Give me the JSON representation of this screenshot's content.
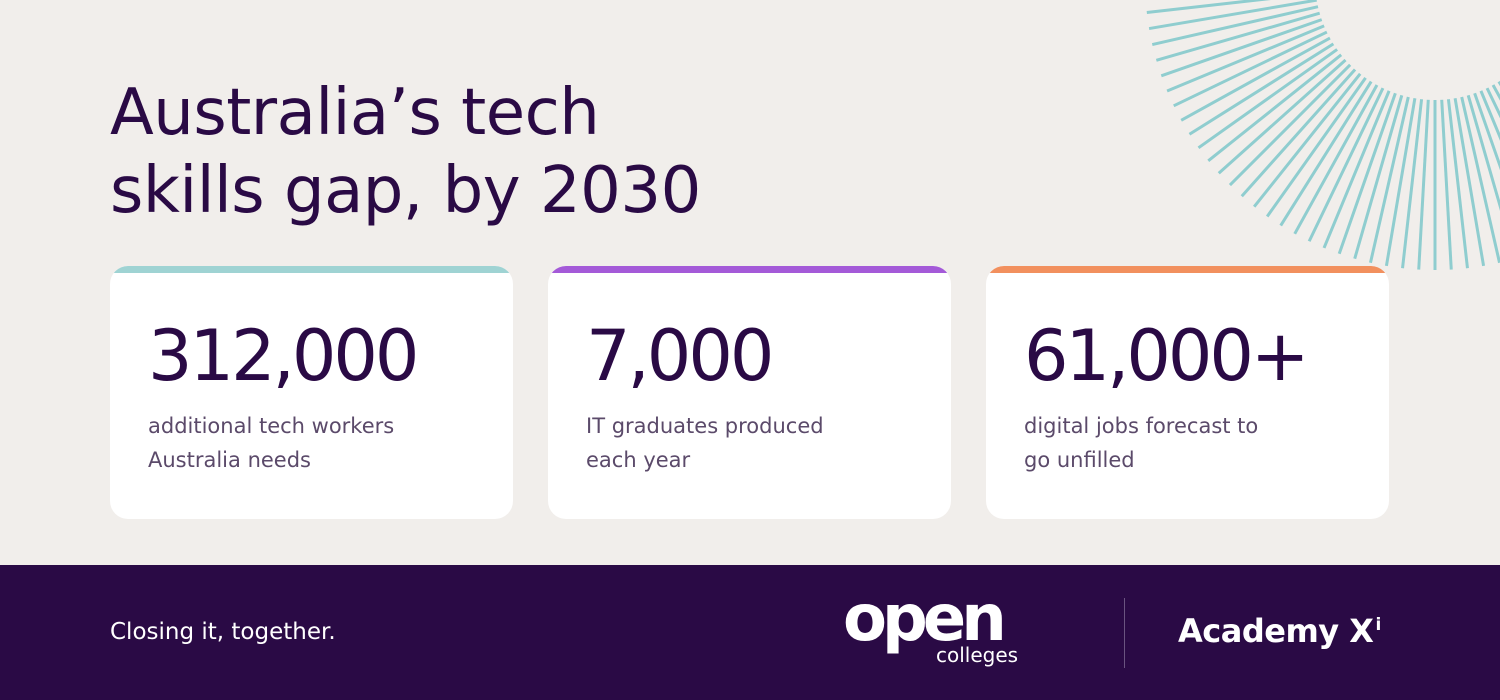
{
  "headline": {
    "line1": "Australia’s tech",
    "line2": "skills gap, by 2030"
  },
  "cards": [
    {
      "stat": "312,000",
      "desc_line1": "additional tech workers",
      "desc_line2": "Australia needs",
      "accent_color": "#9fd3d3"
    },
    {
      "stat": "7,000",
      "desc_line1": "IT graduates produced",
      "desc_line2": "each year",
      "accent_color": "#a45ad8"
    },
    {
      "stat": "61,000+",
      "desc_line1": "digital jobs forecast to",
      "desc_line2": "go unfilled",
      "accent_color": "#f2905e"
    }
  ],
  "footer": {
    "tagline": "Closing it, together.",
    "open_logo_word": "open",
    "open_logo_sub": "colleges",
    "academy_logo": "Academy X",
    "academy_logo_sup": "i"
  },
  "colors": {
    "background": "#f1eeeb",
    "footer_bg": "#2a0a45",
    "text_dark": "#2a0a45",
    "sunburst": "#8fcdcf"
  },
  "icons": {
    "decoration": "sunburst-rays-icon"
  }
}
